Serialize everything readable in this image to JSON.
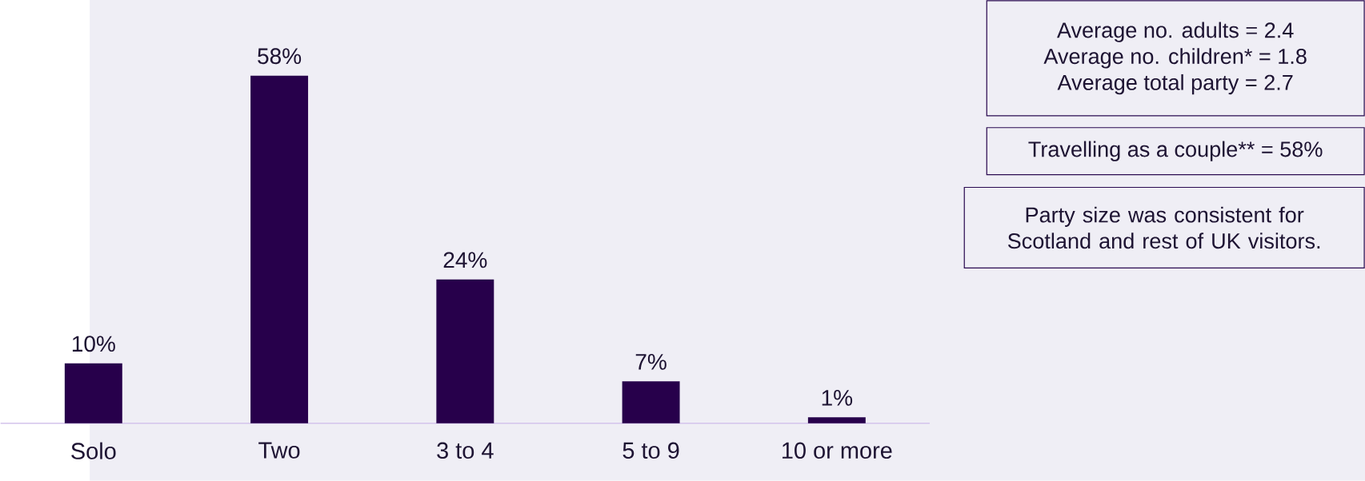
{
  "chart_data": {
    "type": "bar",
    "categories": [
      "Solo",
      "Two",
      "3 to 4",
      "5 to 9",
      "10 or more"
    ],
    "values": [
      10,
      58,
      24,
      7,
      1
    ],
    "value_labels": [
      "10%",
      "58%",
      "24%",
      "7%",
      "1%"
    ],
    "color": "#27004b",
    "annotations": [
      "Average no. adults = 2.4",
      "Average no. children* = 1.8",
      "Average total party = 2.7",
      "Travelling as a couple** = 58%",
      "Party size was consistent for Scotland and rest of UK visitors."
    ]
  }
}
